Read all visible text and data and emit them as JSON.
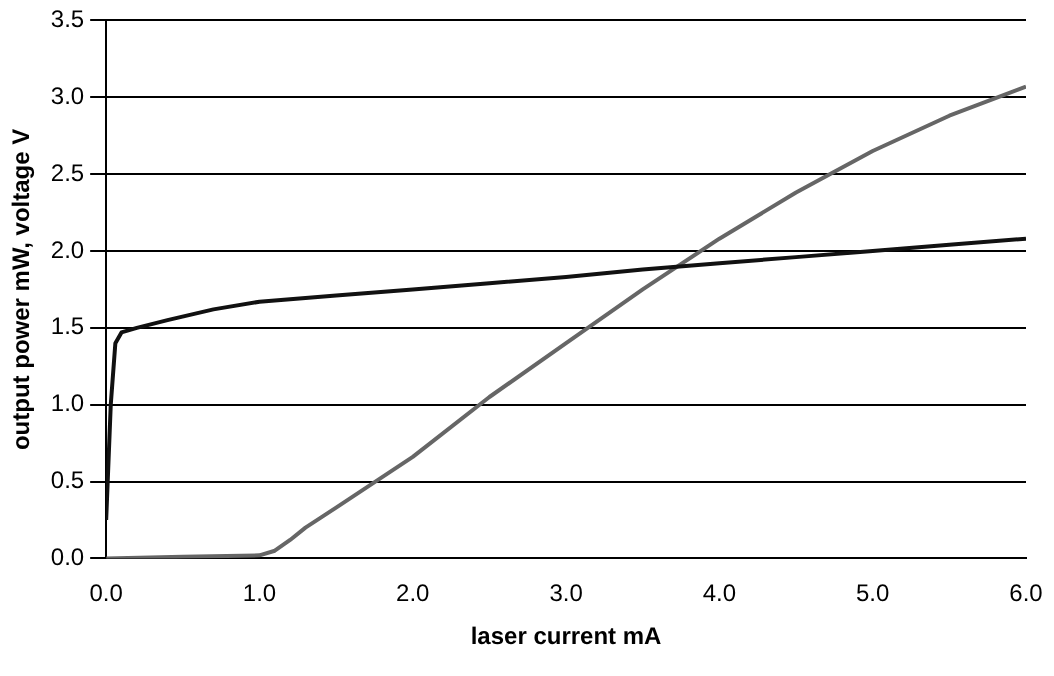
{
  "chart_data": {
    "type": "line",
    "xlabel": "laser current mA",
    "ylabel": "output power mW, voltage V",
    "xlim": [
      0,
      6
    ],
    "ylim": [
      0,
      3.5
    ],
    "xticks": [
      {
        "value": 0,
        "label": "0.0"
      },
      {
        "value": 1,
        "label": "1.0"
      },
      {
        "value": 2,
        "label": "2.0"
      },
      {
        "value": 3,
        "label": "3.0"
      },
      {
        "value": 4,
        "label": "4.0"
      },
      {
        "value": 5,
        "label": "5.0"
      },
      {
        "value": 6,
        "label": "6.0"
      }
    ],
    "yticks": [
      {
        "value": 0,
        "label": "0.0"
      },
      {
        "value": 0.5,
        "label": "0.5"
      },
      {
        "value": 1,
        "label": "1.0"
      },
      {
        "value": 1.5,
        "label": "1.5"
      },
      {
        "value": 2,
        "label": "2.0"
      },
      {
        "value": 2.5,
        "label": "2.5"
      },
      {
        "value": 3,
        "label": "3.0"
      },
      {
        "value": 3.5,
        "label": "3.5"
      }
    ],
    "grid": "y",
    "legend": false,
    "marker": "none",
    "line_style": "solid",
    "series": [
      {
        "color": "#111111",
        "x": [
          0,
          0.03,
          0.06,
          0.1,
          0.2,
          0.4,
          0.7,
          1,
          1.5,
          2,
          2.5,
          3,
          3.5,
          4,
          4.5,
          5,
          5.5,
          6
        ],
        "values": [
          0.25,
          1.0,
          1.4,
          1.47,
          1.5,
          1.55,
          1.62,
          1.67,
          1.71,
          1.75,
          1.79,
          1.83,
          1.88,
          1.92,
          1.96,
          2.0,
          2.04,
          2.08
        ]
      },
      {
        "color": "#666666",
        "x": [
          0,
          0.5,
          1,
          1.1,
          1.2,
          1.3,
          1.5,
          2,
          2.5,
          3,
          3.5,
          4,
          4.5,
          5,
          5.5,
          6
        ],
        "values": [
          0,
          0.01,
          0.02,
          0.05,
          0.12,
          0.2,
          0.33,
          0.66,
          1.05,
          1.4,
          1.75,
          2.08,
          2.38,
          2.65,
          2.88,
          3.07
        ]
      }
    ]
  }
}
